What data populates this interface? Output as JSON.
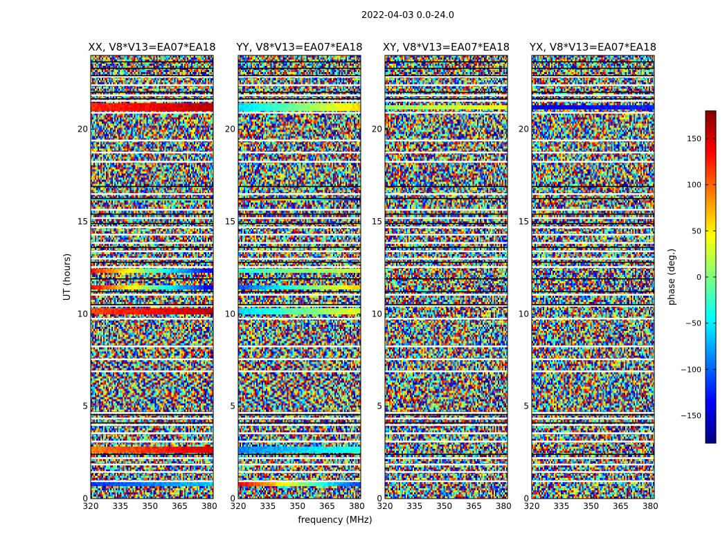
{
  "chart_data": {
    "type": "heatmap",
    "suptitle": "2022-04-03 0.0-24.0",
    "xlabel": "frequency (MHz)",
    "ylabel": "UT (hours)",
    "xlim": [
      320,
      382
    ],
    "ylim": [
      0,
      24
    ],
    "xticks": [
      320,
      335,
      350,
      365,
      380
    ],
    "yticks": [
      0,
      5,
      10,
      15,
      20
    ],
    "colorbar": {
      "label": "phase (deg.)",
      "range": [
        -180,
        180
      ],
      "ticks": [
        150,
        100,
        50,
        0,
        -50,
        -100,
        -150
      ],
      "tick_labels": [
        "150",
        "100",
        "50",
        "0",
        "−50",
        "−100",
        "−150"
      ],
      "colormap": [
        "#00007f",
        "#0000ff",
        "#007fff",
        "#00ffff",
        "#7fff7f",
        "#ffff00",
        "#ff7f00",
        "#ff0000",
        "#7f0000"
      ]
    },
    "panels": [
      {
        "title": "XX, V8*V13=EA07*EA18",
        "structured_bands": [
          {
            "ut": [
              21.0,
              21.4
            ],
            "phase_start": 120,
            "phase_end": 160
          },
          {
            "ut": [
              16.1,
              16.3
            ],
            "phase_start": -40,
            "phase_end": -10
          },
          {
            "ut": [
              12.2,
              12.4
            ],
            "phase_start": 130,
            "phase_end": -150
          },
          {
            "ut": [
              11.3,
              11.6
            ],
            "phase_start": 140,
            "phase_end": -150
          },
          {
            "ut": [
              10.0,
              10.3
            ],
            "phase_start": 110,
            "phase_end": 160
          },
          {
            "ut": [
              2.5,
              2.8
            ],
            "phase_start": 90,
            "phase_end": 150
          },
          {
            "ut": [
              0.7,
              0.9
            ],
            "phase_start": -120,
            "phase_end": -60
          }
        ],
        "fringe_region_ut": [
          5.0,
          8.7
        ]
      },
      {
        "title": "YY, V8*V13=EA07*EA18",
        "structured_bands": [
          {
            "ut": [
              21.0,
              21.4
            ],
            "phase_start": -60,
            "phase_end": 60
          },
          {
            "ut": [
              16.1,
              16.3
            ],
            "phase_start": 150,
            "phase_end": -150
          },
          {
            "ut": [
              12.2,
              12.4
            ],
            "phase_start": -30,
            "phase_end": 30
          },
          {
            "ut": [
              11.3,
              11.6
            ],
            "phase_start": -110,
            "phase_end": 70
          },
          {
            "ut": [
              10.0,
              10.3
            ],
            "phase_start": -60,
            "phase_end": 40
          },
          {
            "ut": [
              2.5,
              2.8
            ],
            "phase_start": -90,
            "phase_end": -30
          },
          {
            "ut": [
              0.7,
              0.9
            ],
            "phase_start": 140,
            "phase_end": -120
          }
        ],
        "fringe_region_ut": [
          5.0,
          8.7
        ]
      },
      {
        "title": "XY, V8*V13=EA07*EA18",
        "structured_bands": [
          {
            "ut": [
              21.1,
              21.3
            ],
            "phase_start": 10,
            "phase_end": 40
          }
        ],
        "fringe_region_ut": null
      },
      {
        "title": "YX, V8*V13=EA07*EA18",
        "structured_bands": [
          {
            "ut": [
              21.1,
              21.3
            ],
            "phase_start": -150,
            "phase_end": -120
          },
          {
            "ut": [
              16.1,
              16.2
            ],
            "phase_start": 100,
            "phase_end": 120
          }
        ],
        "fringe_region_ut": null
      }
    ],
    "flagged_gaps_ut": [
      0.95,
      1.45,
      1.85,
      2.2,
      3.1,
      3.55,
      4.0,
      4.35,
      4.65,
      6.9,
      7.55,
      8.25,
      9.75,
      10.45,
      11.05,
      12.55,
      13.0,
      13.4,
      13.85,
      14.3,
      14.7,
      15.2,
      15.65,
      16.5,
      18.25,
      18.75,
      19.4,
      20.9,
      21.55,
      21.85,
      22.4,
      22.85
    ],
    "dark_rows_ut": [
      2.4,
      4.1,
      4.55,
      10.5,
      11.2,
      11.9,
      12.8,
      13.6,
      14.9,
      15.4,
      16.25,
      16.9,
      21.65,
      22.0,
      22.9,
      23.3,
      23.65
    ]
  }
}
